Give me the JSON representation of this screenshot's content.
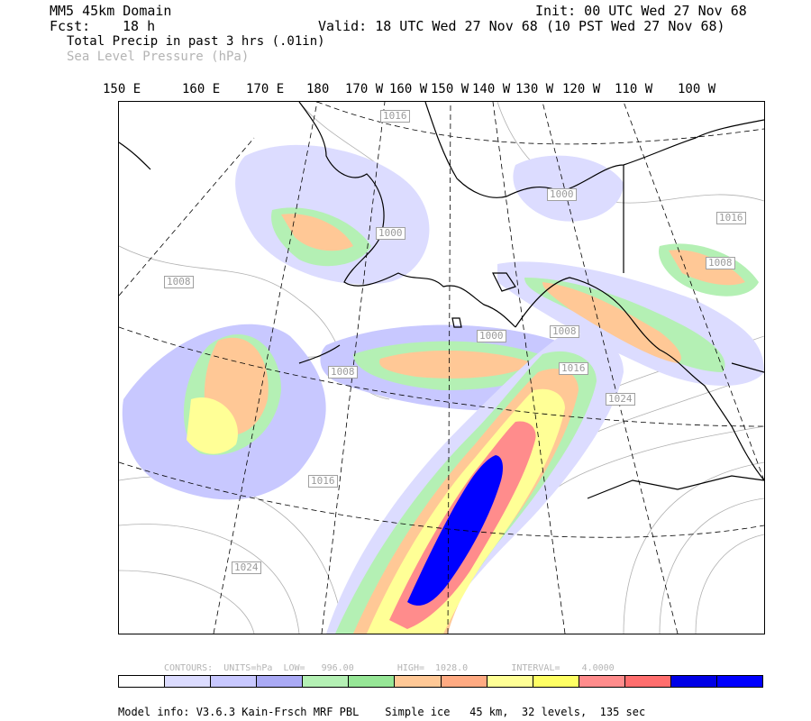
{
  "header": {
    "domain": "MM5 45km Domain",
    "fcst_label": "Fcst:",
    "fcst_value": "18 h",
    "init": "Init: 00 UTC Wed 27 Nov 68",
    "valid": "Valid: 18 UTC Wed 27 Nov 68 (10 PST Wed 27 Nov 68)",
    "field1": "Total Precip in past 3 hrs (.01in)",
    "field2": "Sea Level Pressure (hPa)"
  },
  "longitudes": [
    "150 E",
    "160 E",
    "170 E",
    "180",
    "170 W",
    "160 W",
    "150 W",
    "140 W",
    "130 W",
    "120 W",
    "110 W",
    "100 W"
  ],
  "contour_labels": [
    "1016",
    "1000",
    "1016",
    "1008",
    "1008",
    "1000",
    "1008",
    "1016",
    "1008",
    "1024",
    "1016",
    "1024",
    "1000"
  ],
  "contours_info": {
    "text": "CONTOURS:  UNITS=hPa  LOW=   996.00        HIGH=  1028.0        INTERVAL=    4.0000"
  },
  "colorbar": {
    "colors": [
      "#ffffff",
      "#dcdcff",
      "#c8c8ff",
      "#aaaaf5",
      "#b4f0b4",
      "#96e696",
      "#ffc896",
      "#ffaa82",
      "#ffff96",
      "#ffff64",
      "#ff8c8c",
      "#ff6e6e",
      "#0000e6",
      "#0000ff"
    ]
  },
  "footer": {
    "model_info": "Model info: V3.6.3 Kain-Frsch MRF PBL    Simple ice   45 km,  32 levels,  135 sec"
  }
}
